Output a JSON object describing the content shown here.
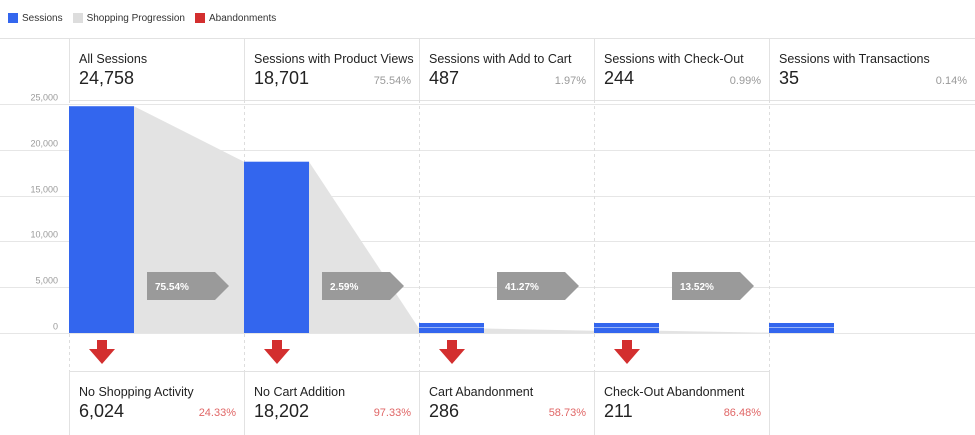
{
  "legend": [
    {
      "label": "Sessions",
      "color": "#3366ee"
    },
    {
      "label": "Shopping Progression",
      "color": "#dddddd"
    },
    {
      "label": "Abandonments",
      "color": "#d32f2f"
    }
  ],
  "stages": [
    {
      "title": "All Sessions",
      "value": "24,758",
      "pct": ""
    },
    {
      "title": "Sessions with Product Views",
      "value": "18,701",
      "pct": "75.54%"
    },
    {
      "title": "Sessions with Add to Cart",
      "value": "487",
      "pct": "1.97%"
    },
    {
      "title": "Sessions with Check-Out",
      "value": "244",
      "pct": "0.99%"
    },
    {
      "title": "Sessions with Transactions",
      "value": "35",
      "pct": "0.14%"
    }
  ],
  "abandonments": [
    {
      "title": "No Shopping Activity",
      "value": "6,024",
      "pct": "24.33%"
    },
    {
      "title": "No Cart Addition",
      "value": "18,202",
      "pct": "97.33%"
    },
    {
      "title": "Cart Abandonment",
      "value": "286",
      "pct": "58.73%"
    },
    {
      "title": "Check-Out Abandonment",
      "value": "211",
      "pct": "86.48%"
    }
  ],
  "chart_data": {
    "type": "bar",
    "categories": [
      "All Sessions",
      "Sessions with Product Views",
      "Sessions with Add to Cart",
      "Sessions with Check-Out",
      "Sessions with Transactions"
    ],
    "values": [
      24758,
      18701,
      487,
      244,
      35
    ],
    "progression_labels": [
      "75.54%",
      "2.59%",
      "41.27%",
      "13.52%"
    ],
    "yticks": [
      "25,000",
      "20,000",
      "15,000",
      "10,000",
      "5,000",
      "0"
    ],
    "ylim": [
      0,
      25000
    ],
    "grid": true,
    "colors": {
      "sessions": "#3366ee",
      "progression": "#e3e3e3",
      "abandonment": "#d32f2f",
      "arrow": "#999999"
    }
  }
}
